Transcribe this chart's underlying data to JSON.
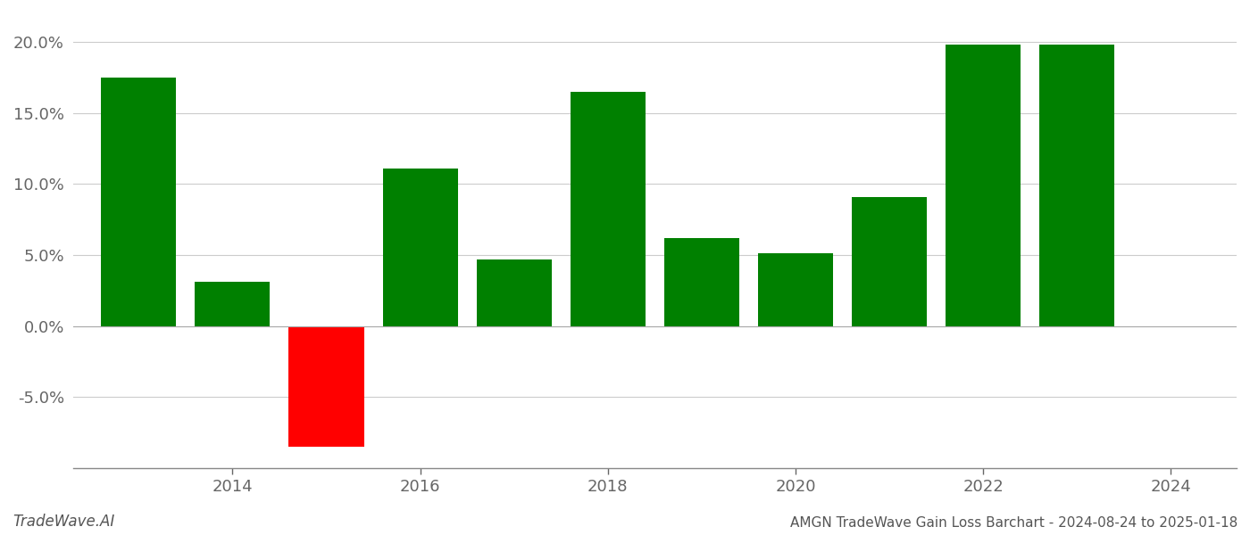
{
  "years": [
    2013,
    2014,
    2015,
    2016,
    2017,
    2018,
    2019,
    2020,
    2021,
    2022,
    2023
  ],
  "values": [
    0.175,
    0.031,
    -0.085,
    0.111,
    0.047,
    0.165,
    0.062,
    0.051,
    0.091,
    0.198,
    0.198
  ],
  "bar_colors": [
    "#008000",
    "#008000",
    "#ff0000",
    "#008000",
    "#008000",
    "#008000",
    "#008000",
    "#008000",
    "#008000",
    "#008000",
    "#008000"
  ],
  "title": "AMGN TradeWave Gain Loss Barchart - 2024-08-24 to 2025-01-18",
  "watermark": "TradeWave.AI",
  "ylim": [
    -0.1,
    0.22
  ],
  "yticks": [
    -0.05,
    0.0,
    0.05,
    0.1,
    0.15,
    0.2
  ],
  "xticks": [
    2014,
    2016,
    2018,
    2020,
    2022,
    2024
  ],
  "xlim": [
    2012.3,
    2024.7
  ],
  "background_color": "#ffffff",
  "grid_color": "#cccccc",
  "bar_width": 0.8,
  "title_fontsize": 11,
  "watermark_fontsize": 12,
  "tick_fontsize": 13
}
